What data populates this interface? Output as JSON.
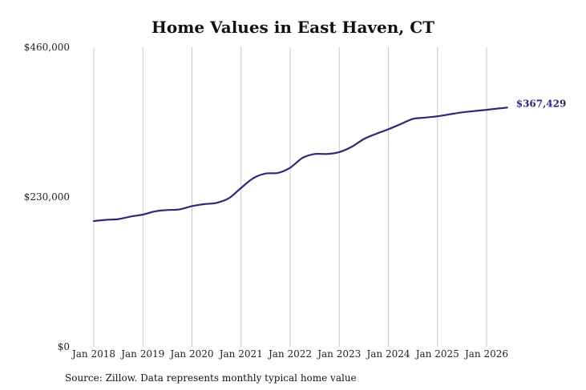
{
  "chart_data": {
    "type": "line",
    "title": "Home Values in East Haven, CT",
    "source": "Source: Zillow. Data represents monthly typical home value",
    "x_tick_labels": [
      "Jan 2018",
      "Jan 2019",
      "Jan 2020",
      "Jan 2021",
      "Jan 2022",
      "Jan 2023",
      "Jan 2024",
      "Jan 2025",
      "Jan 2026"
    ],
    "x_range": [
      2018.0,
      2026.42
    ],
    "y_tick_labels": [
      "$0",
      "$230,000",
      "$460,000"
    ],
    "y_ticks": [
      0,
      230000,
      460000
    ],
    "ylim": [
      0,
      460000
    ],
    "grid": "vertical",
    "line_color": "#2b2a78",
    "end_label": "$367,429",
    "series": [
      {
        "x": [
          2018.0,
          2018.25,
          2018.5,
          2018.75,
          2019.0,
          2019.25,
          2019.5,
          2019.75,
          2020.0,
          2020.25,
          2020.5,
          2020.75,
          2021.0,
          2021.25,
          2021.5,
          2021.75,
          2022.0,
          2022.25,
          2022.5,
          2022.75,
          2023.0,
          2023.25,
          2023.5,
          2023.75,
          2024.0,
          2024.25,
          2024.5,
          2024.75,
          2025.0,
          2025.25,
          2025.5,
          2025.75,
          2026.0,
          2026.25,
          2026.42
        ],
        "values": [
          193000,
          195000,
          196000,
          200000,
          203000,
          208000,
          210000,
          211000,
          216000,
          219000,
          221000,
          228000,
          244000,
          259000,
          266000,
          267000,
          275000,
          290000,
          296000,
          296000,
          299000,
          307000,
          319000,
          327000,
          334000,
          342000,
          350000,
          352000,
          354000,
          357000,
          360000,
          362000,
          364000,
          366000,
          367429
        ]
      }
    ]
  }
}
